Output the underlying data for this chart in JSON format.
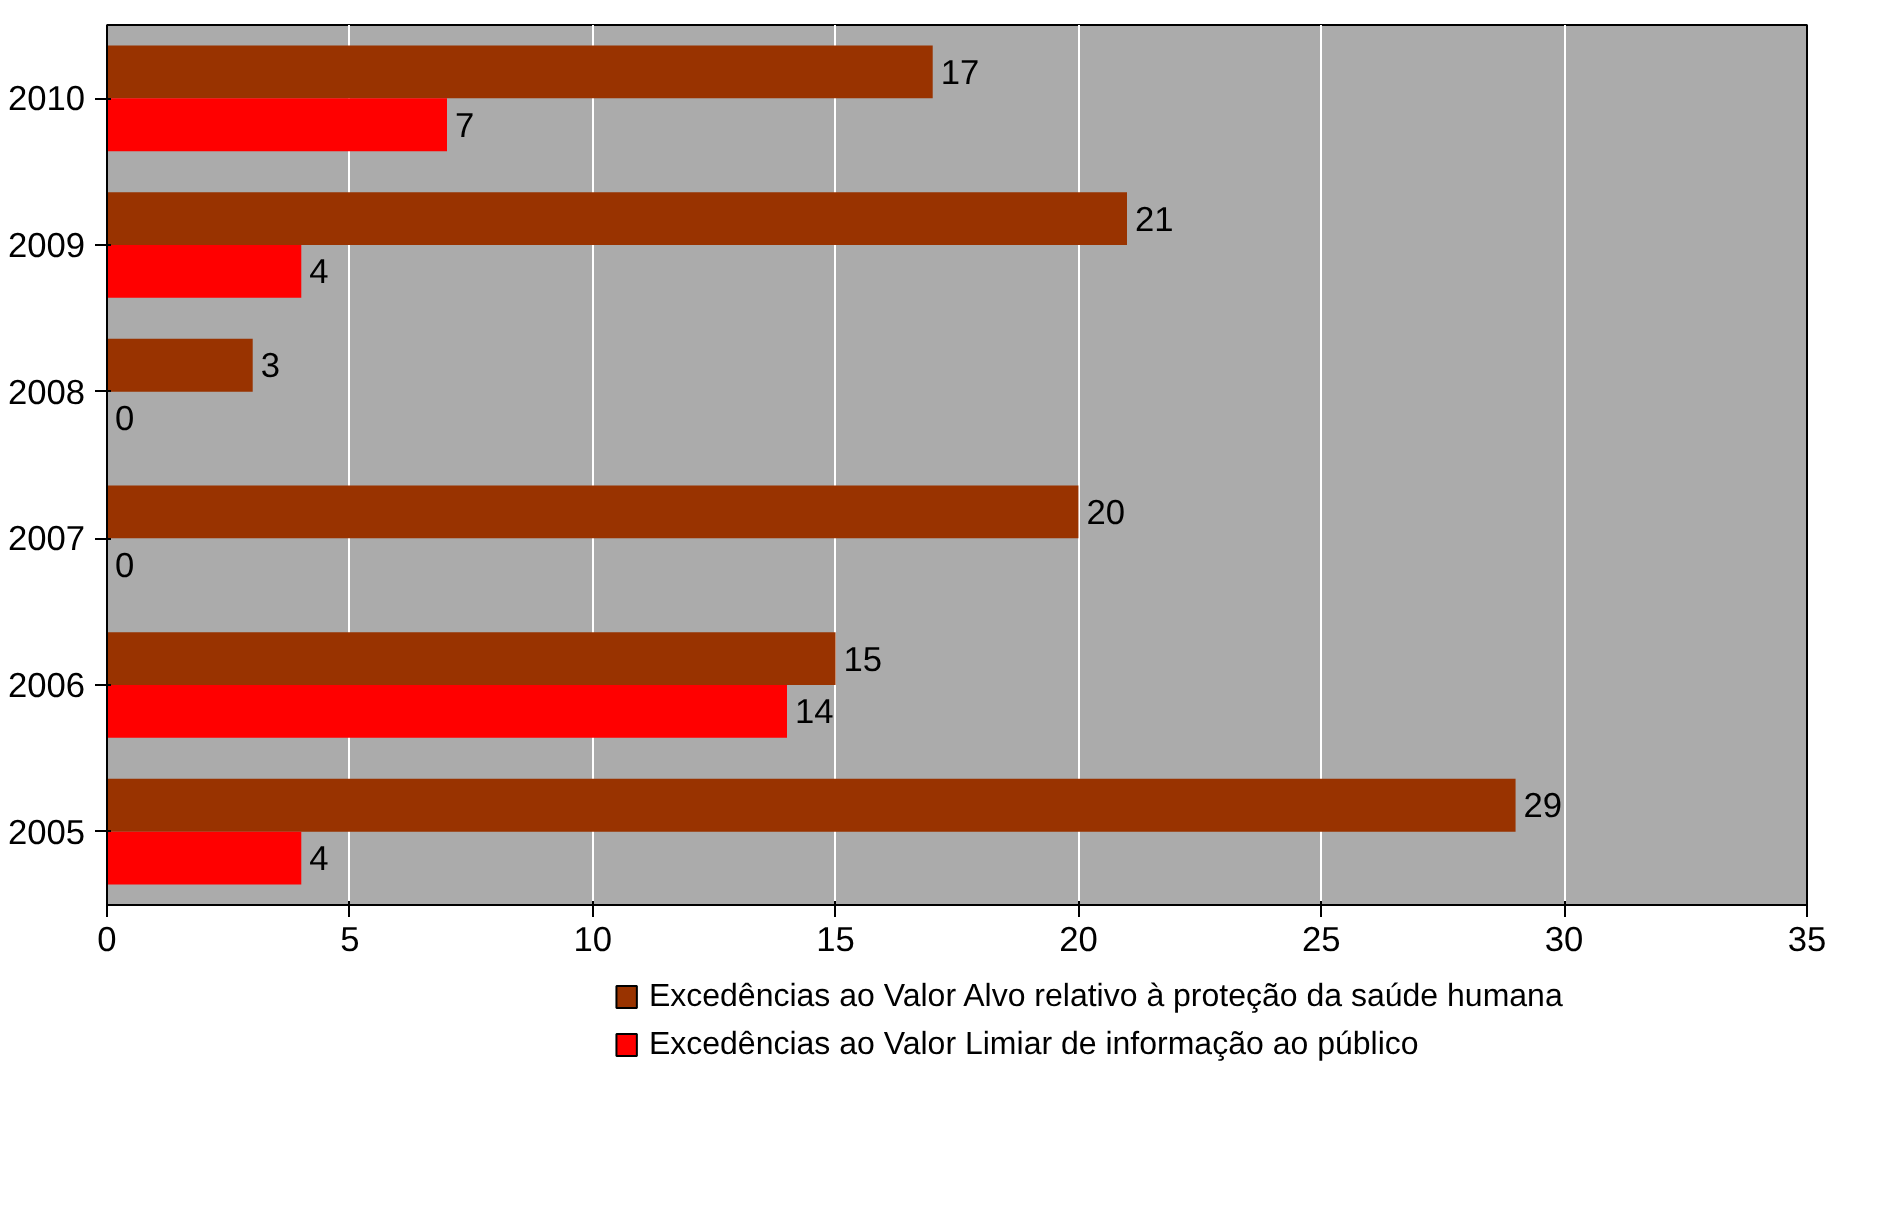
{
  "chart_data": {
    "type": "bar",
    "orientation": "horizontal",
    "categories": [
      "2010",
      "2009",
      "2008",
      "2007",
      "2006",
      "2005"
    ],
    "series": [
      {
        "name": "Excedências ao Valor Alvo relativo à proteção da saúde humana",
        "color": "#993300",
        "values": [
          17,
          21,
          3,
          20,
          15,
          29
        ]
      },
      {
        "name": "Excedências ao Valor Limiar de informação ao público",
        "color": "#ff0000",
        "values": [
          7,
          4,
          0,
          0,
          14,
          4
        ]
      }
    ],
    "xlim": [
      0,
      35
    ],
    "xticks": [
      0,
      5,
      10,
      15,
      20,
      25,
      30,
      35
    ],
    "grid": "x",
    "legend": "bottom",
    "data_labels": true
  }
}
